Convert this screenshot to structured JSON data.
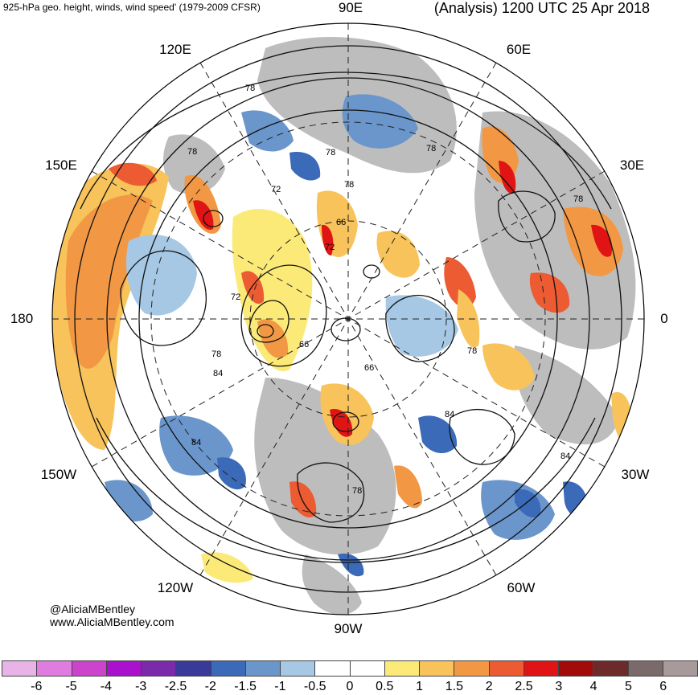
{
  "header": {
    "left_title": "925-hPa geo. height, winds, wind speed' (1979-2009 CFSR)",
    "right_title": "(Analysis) 1200 UTC 25 Apr 2018"
  },
  "longitude_labels": {
    "lon_90e": "90E",
    "lon_120e": "120E",
    "lon_60e": "60E",
    "lon_150e": "150E",
    "lon_30e": "30E",
    "lon_180": "180",
    "lon_0": "0",
    "lon_150w": "150W",
    "lon_30w": "30W",
    "lon_120w": "120W",
    "lon_60w": "60W",
    "lon_90w": "90W"
  },
  "contour_labels": [
    "78",
    "78",
    "78",
    "78",
    "72",
    "78",
    "66",
    "72",
    "78",
    "72",
    "78",
    "66",
    "84",
    "66",
    "78",
    "84",
    "84",
    "84",
    "78"
  ],
  "credits": {
    "twitter": "@AliciaMBentley",
    "website": "www.AliciaMBentley.com"
  },
  "colorbar": {
    "colors": [
      "#e8b4e8",
      "#e07be0",
      "#cc44cc",
      "#aa11cc",
      "#7a2aaa",
      "#3a3a9a",
      "#3a6ab8",
      "#6a96cc",
      "#a6c8e4",
      "#ffffff",
      "#ffffff",
      "#fcea78",
      "#f7c35a",
      "#f29844",
      "#ec5b32",
      "#e01414",
      "#a30b0b",
      "#6e2a2a",
      "#7a6a6a",
      "#a89a9a"
    ],
    "tick_labels": [
      "-6",
      "-5",
      "-4",
      "-3",
      "-2.5",
      "-2",
      "-1.5",
      "-1",
      "-0.5",
      "0",
      "0.5",
      "1",
      "1.5",
      "2",
      "2.5",
      "3",
      "4",
      "5",
      "6"
    ]
  }
}
